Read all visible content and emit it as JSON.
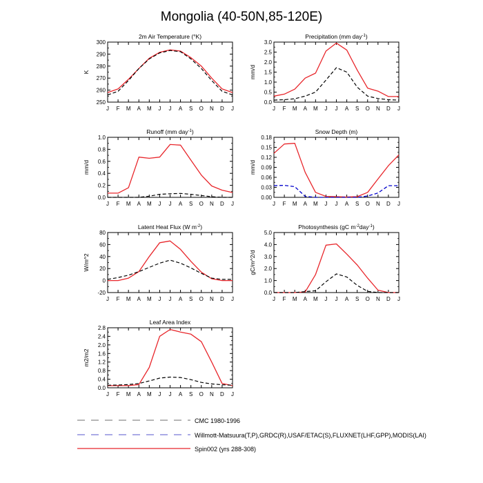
{
  "title": "Mongolia (40-50N,85-120E)",
  "months": [
    "J",
    "F",
    "M",
    "A",
    "M",
    "J",
    "J",
    "A",
    "S",
    "O",
    "N",
    "D",
    "J"
  ],
  "colors": {
    "spin": "#e8252a",
    "obs": "#0000cc",
    "cmc": "#000000",
    "axis": "#000000"
  },
  "legend": [
    {
      "label": "CMC 1980-1996",
      "style": "dash-gray"
    },
    {
      "label": "Willmott-Matsuura(T,P),GRDC(R),USAF/ETAC(S),FLUXNET(LHF,GPP),MODIS(LAI)",
      "style": "dash-blue"
    },
    {
      "label": "Spin002 (yrs 288-308)",
      "style": "solid-red"
    }
  ],
  "chart_data": [
    {
      "type": "line",
      "title": "2m Air Temperature (°K)",
      "ylabel": "K",
      "ylim": [
        250,
        300
      ],
      "yticks": [
        250,
        260,
        270,
        280,
        290,
        300
      ],
      "ytick_labels": [
        "250",
        "260",
        "270",
        "280",
        "290",
        "300"
      ],
      "series": [
        {
          "name": "Spin002 (yrs 288-308)",
          "style": "spin",
          "values": [
            258,
            261,
            269,
            278,
            286.5,
            291.5,
            293.5,
            292.5,
            287,
            280,
            270,
            261,
            258
          ]
        },
        {
          "name": "CMC 1980-1996",
          "style": "cmc",
          "values": [
            256,
            259,
            268,
            278,
            286,
            291,
            293,
            292,
            286,
            278,
            268,
            259,
            256
          ]
        }
      ]
    },
    {
      "type": "line",
      "title": "Precipitation (mm day-1)",
      "ylabel": "mm/d",
      "ylim": [
        0,
        3
      ],
      "yticks": [
        0,
        0.5,
        1.0,
        1.5,
        2.0,
        2.5,
        3.0
      ],
      "ytick_labels": [
        "0.0",
        "0.5",
        "1.0",
        "1.5",
        "2.0",
        "2.5",
        "3.0"
      ],
      "series": [
        {
          "name": "Spin002 (yrs 288-308)",
          "style": "spin",
          "values": [
            0.3,
            0.4,
            0.65,
            1.2,
            1.45,
            2.55,
            2.95,
            2.6,
            1.6,
            0.7,
            0.55,
            0.28,
            0.28
          ]
        },
        {
          "name": "CMC 1980-1996",
          "style": "cmc",
          "values": [
            0.1,
            0.12,
            0.17,
            0.3,
            0.5,
            1.1,
            1.72,
            1.5,
            0.75,
            0.3,
            0.18,
            0.12,
            0.1
          ]
        }
      ]
    },
    {
      "type": "line",
      "title": "Runoff (mm day-1)",
      "ylabel": "mm/d",
      "ylim": [
        0,
        1
      ],
      "yticks": [
        0,
        0.2,
        0.4,
        0.6,
        0.8,
        1.0
      ],
      "ytick_labels": [
        "0.0",
        "0.2",
        "0.4",
        "0.6",
        "0.8",
        "1.0"
      ],
      "series": [
        {
          "name": "Spin002 (yrs 288-308)",
          "style": "spin",
          "values": [
            0.07,
            0.07,
            0.16,
            0.67,
            0.65,
            0.67,
            0.88,
            0.87,
            0.62,
            0.37,
            0.19,
            0.12,
            0.08
          ]
        },
        {
          "name": "CMC 1980-1996",
          "style": "cmc",
          "values": [
            0.0,
            0.0,
            0.0,
            0.0,
            0.02,
            0.05,
            0.06,
            0.065,
            0.05,
            0.03,
            0.01,
            0.0,
            0.0
          ]
        }
      ]
    },
    {
      "type": "line",
      "title": "Snow Depth (m)",
      "ylabel": "mm/d",
      "ylim": [
        0,
        0.18
      ],
      "yticks": [
        0,
        0.03,
        0.06,
        0.09,
        0.12,
        0.15,
        0.18
      ],
      "ytick_labels": [
        "0.00",
        "0.03",
        "0.06",
        "0.09",
        "0.12",
        "0.15",
        "0.18"
      ],
      "series": [
        {
          "name": "Spin002 (yrs 288-308)",
          "style": "spin",
          "values": [
            0.132,
            0.16,
            0.162,
            0.075,
            0.015,
            0.003,
            0.002,
            0.001,
            0.002,
            0.015,
            0.055,
            0.095,
            0.127
          ]
        },
        {
          "name": "Willmott-Matsuura(T,P),GRDC(R),USAF/ETAC(S),FLUXNET(LHF,GPP),MODIS(LAI)",
          "style": "obs",
          "values": [
            0.035,
            0.036,
            0.032,
            0.003,
            0.0,
            0.0,
            0.0,
            0.0,
            0.0,
            0.004,
            0.013,
            0.035,
            0.035
          ]
        }
      ]
    },
    {
      "type": "line",
      "title": "Latent Heat Flux (W m-2)",
      "ylabel": "W/m^2",
      "ylim": [
        -20,
        80
      ],
      "yticks": [
        -20,
        0,
        20,
        40,
        60,
        80
      ],
      "ytick_labels": [
        "-20",
        "0",
        "20",
        "40",
        "60",
        "80"
      ],
      "series": [
        {
          "name": "Spin002 (yrs 288-308)",
          "style": "spin",
          "values": [
            0,
            0,
            4,
            15,
            40,
            63,
            66,
            52,
            32,
            14,
            3,
            0,
            0
          ]
        },
        {
          "name": "CMC 1980-1996",
          "style": "cmc",
          "values": [
            2,
            5,
            9,
            15,
            22,
            29,
            34,
            29,
            21,
            12,
            4,
            2,
            2
          ]
        }
      ]
    },
    {
      "type": "line",
      "title": "Photosynthesis (gC m-2day-1)",
      "ylabel": "gC/m^2/d",
      "ylim": [
        0,
        5
      ],
      "yticks": [
        0,
        1,
        2,
        3,
        4,
        5
      ],
      "ytick_labels": [
        "0.0",
        "1.0",
        "2.0",
        "3.0",
        "4.0",
        "5.0"
      ],
      "series": [
        {
          "name": "Spin002 (yrs 288-308)",
          "style": "spin",
          "values": [
            0,
            0,
            0,
            0.05,
            1.5,
            3.95,
            4.05,
            3.2,
            2.3,
            1.2,
            0.2,
            0,
            0
          ]
        },
        {
          "name": "CMC 1980-1996",
          "style": "cmc",
          "values": [
            0,
            0,
            0,
            0.08,
            0.15,
            0.9,
            1.55,
            1.3,
            0.6,
            0.1,
            0,
            0,
            0
          ]
        }
      ]
    },
    {
      "type": "line",
      "title": "Leaf Area Index",
      "ylabel": "m2/m2",
      "ylim": [
        0,
        2.8
      ],
      "yticks": [
        0,
        0.4,
        0.8,
        1.2,
        1.6,
        2.0,
        2.4,
        2.8
      ],
      "ytick_labels": [
        "0.0",
        "0.4",
        "0.8",
        "1.2",
        "1.6",
        "2.0",
        "2.4",
        "2.8"
      ],
      "series": [
        {
          "name": "Spin002 (yrs 288-308)",
          "style": "spin",
          "values": [
            0.1,
            0.1,
            0.1,
            0.15,
            0.95,
            2.4,
            2.72,
            2.6,
            2.5,
            2.15,
            1.2,
            0.2,
            0.1
          ]
        },
        {
          "name": "CMC 1980-1996",
          "style": "cmc",
          "values": [
            0.12,
            0.13,
            0.15,
            0.2,
            0.32,
            0.45,
            0.5,
            0.48,
            0.38,
            0.25,
            0.18,
            0.14,
            0.12
          ]
        }
      ]
    }
  ]
}
